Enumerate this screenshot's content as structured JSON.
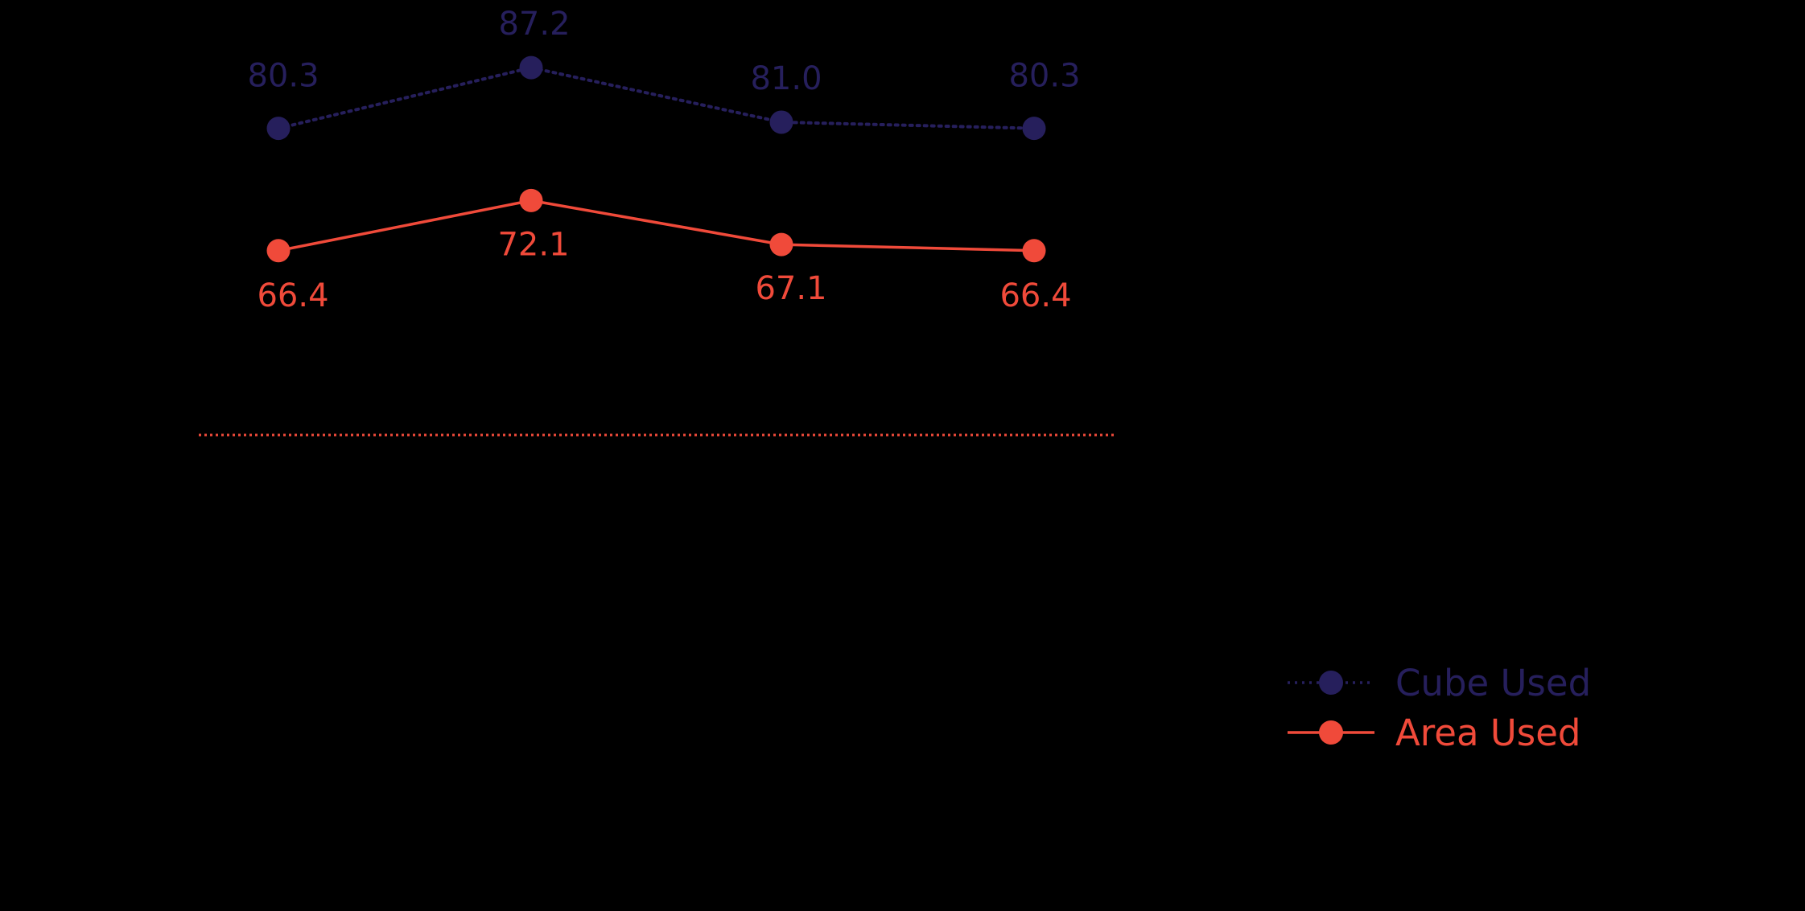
{
  "chart_data": {
    "type": "line",
    "title": "",
    "xlabel": "",
    "ylabel": "",
    "categories": [
      "",
      "",
      "",
      ""
    ],
    "ylim": [
      50,
      100
    ],
    "grid": false,
    "legend_position": "bottom-right",
    "background": "#000000",
    "series": [
      {
        "name": "Cube Used",
        "values": [
          80.3,
          87.2,
          81.0,
          80.3
        ],
        "labels": [
          "80.3",
          "87.2",
          "81.0",
          "80.3"
        ],
        "color": "#261f5c",
        "line_style": "dotted",
        "label_position": "above"
      },
      {
        "name": "Area Used",
        "values": [
          66.4,
          72.1,
          67.1,
          66.4
        ],
        "labels": [
          "66.4",
          "72.1",
          "67.1",
          "66.4"
        ],
        "color": "#f04a3a",
        "line_style": "solid",
        "label_position": "below"
      }
    ],
    "baseline_color": "#f04a3a"
  }
}
